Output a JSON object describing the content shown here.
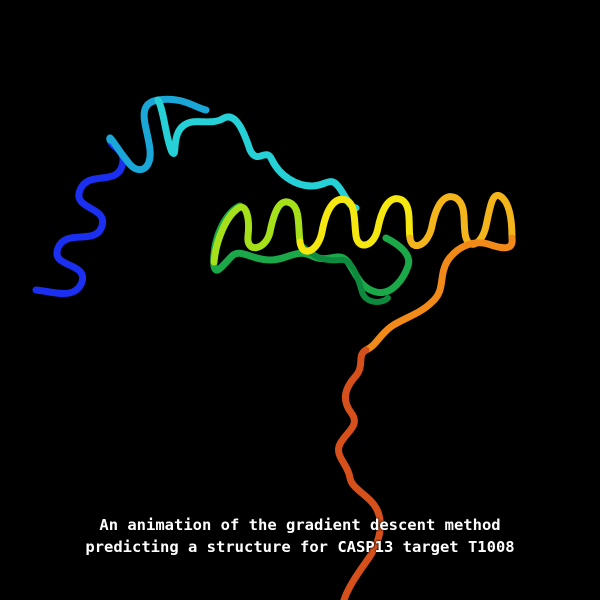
{
  "caption": {
    "line1": "An animation of the gradient descent method",
    "line2": "predicting a structure for CASP13 target T1008"
  },
  "colors": {
    "background": "#000000",
    "caption_text": "#ffffff",
    "ribbon_gradient": [
      "#1030d8",
      "#17a8d4",
      "#2ed6d6",
      "#3fe08a",
      "#12a84a",
      "#8fe21a",
      "#f2ea10",
      "#f7c41a",
      "#f28a16",
      "#e0521a",
      "#c83a12"
    ]
  }
}
